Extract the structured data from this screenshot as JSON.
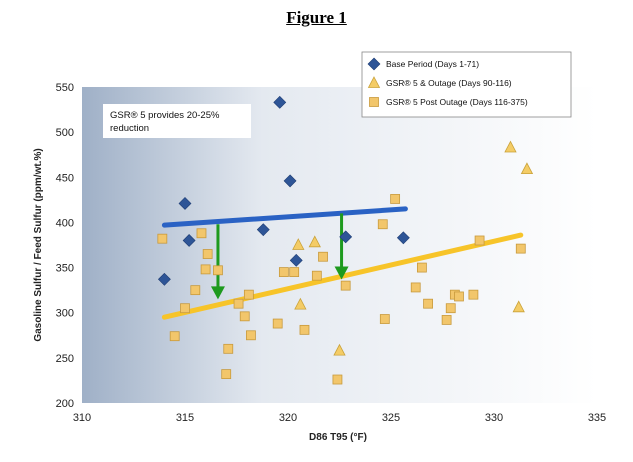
{
  "figure_title": "Figure 1",
  "chart_data": {
    "type": "scatter",
    "xlabel": "D86 T95 (°F)",
    "ylabel": "Gasoline Sulfur / Feed Sulfur (ppm/wt.%)",
    "xlim": [
      310,
      335
    ],
    "ylim": [
      200,
      550
    ],
    "xticks": [
      310,
      315,
      320,
      325,
      330,
      335
    ],
    "yticks": [
      200,
      250,
      300,
      350,
      400,
      450,
      500,
      550
    ],
    "legend_position": "top-right",
    "annotation": [
      "GSR® 5 provides 20-25%",
      "reduction"
    ],
    "series": [
      {
        "name": "Base Period (Days 1-71)",
        "marker": "diamond",
        "color": "#2e5597",
        "points": [
          [
            314,
            337
          ],
          [
            315,
            421
          ],
          [
            315.2,
            380
          ],
          [
            318.8,
            392
          ],
          [
            319.6,
            533
          ],
          [
            320.1,
            446
          ],
          [
            320.4,
            358
          ],
          [
            322.8,
            384
          ],
          [
            325.6,
            383
          ]
        ]
      },
      {
        "name": "GSR® 5 & Outage (Days 90-116)",
        "marker": "triangle",
        "color": "#f4cc66",
        "points": [
          [
            320.5,
            375
          ],
          [
            321.3,
            378
          ],
          [
            320.6,
            309
          ],
          [
            322.5,
            258
          ],
          [
            330.8,
            483
          ],
          [
            331.6,
            459
          ],
          [
            331.2,
            306
          ]
        ]
      },
      {
        "name": "GSR® 5 Post Outage (Days 116-375)",
        "marker": "square",
        "color": "#f2c66b",
        "points": [
          [
            313.9,
            382
          ],
          [
            314.5,
            274
          ],
          [
            315,
            305
          ],
          [
            315.5,
            325
          ],
          [
            315.8,
            388
          ],
          [
            316.1,
            365
          ],
          [
            316,
            348
          ],
          [
            316.6,
            347
          ],
          [
            317,
            232
          ],
          [
            317.1,
            260
          ],
          [
            317.6,
            310
          ],
          [
            317.9,
            296
          ],
          [
            318.1,
            320
          ],
          [
            318.2,
            275
          ],
          [
            319.5,
            288
          ],
          [
            319.8,
            345
          ],
          [
            320.3,
            345
          ],
          [
            320.8,
            281
          ],
          [
            321.4,
            341
          ],
          [
            321.7,
            362
          ],
          [
            322.4,
            226
          ],
          [
            322.8,
            330
          ],
          [
            324.6,
            398
          ],
          [
            324.7,
            293
          ],
          [
            325.2,
            426
          ],
          [
            326.2,
            328
          ],
          [
            326.5,
            350
          ],
          [
            326.8,
            310
          ],
          [
            327.7,
            292
          ],
          [
            327.9,
            305
          ],
          [
            328.1,
            320
          ],
          [
            328.3,
            318
          ],
          [
            329,
            320
          ],
          [
            329.3,
            380
          ],
          [
            331.3,
            371
          ]
        ]
      }
    ],
    "trendlines": [
      {
        "name": "base-trend",
        "color": "#2a62c4",
        "from": [
          314,
          397
        ],
        "to": [
          325.7,
          415
        ]
      },
      {
        "name": "gsr-trend",
        "color": "#f7c429",
        "from": [
          314,
          295
        ],
        "to": [
          331.3,
          386
        ]
      }
    ],
    "arrows": [
      {
        "name": "reduction-arrow-1",
        "color": "#1e9a1e",
        "from": [
          316.6,
          398
        ],
        "to": [
          316.6,
          317
        ]
      },
      {
        "name": "reduction-arrow-2",
        "color": "#1e9a1e",
        "from": [
          322.6,
          410
        ],
        "to": [
          322.6,
          339
        ]
      }
    ]
  }
}
